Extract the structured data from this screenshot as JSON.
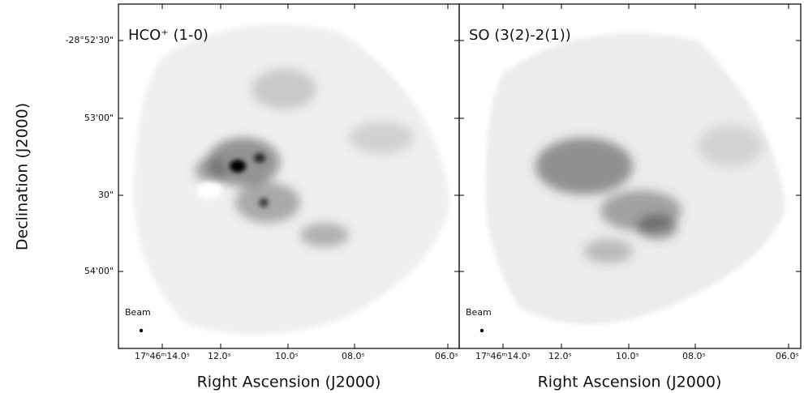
{
  "figure": {
    "y_axis_label": "Declination (J2000)",
    "yticks": [
      "-28°52'30\"",
      "53'00\"",
      "30\"",
      "54'00\""
    ],
    "panels": [
      {
        "title": "HCO⁺ (1-0)",
        "beam_label": "Beam",
        "x_axis_label": "Right Ascension (J2000)",
        "xticks": [
          "17ʰ46ᵐ14.0ˢ",
          "12.0ˢ",
          "10.0ˢ",
          "08.0ˢ",
          "06.0ˢ"
        ]
      },
      {
        "title": "SO (3(2)-2(1))",
        "beam_label": "Beam",
        "x_axis_label": "Right Ascension (J2000)",
        "xticks": [
          "17ʰ46ᵐ14.0ˢ",
          "12.0ˢ",
          "10.0ˢ",
          "08.0ˢ",
          "06.0ˢ"
        ]
      }
    ]
  }
}
